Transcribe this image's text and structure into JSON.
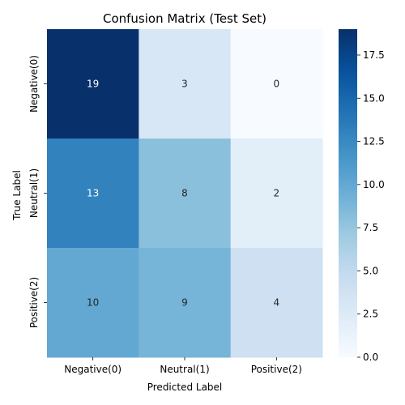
{
  "chart_data": {
    "type": "heatmap",
    "title": "Confusion Matrix (Test Set)",
    "xlabel": "Predicted Label",
    "ylabel": "True Label",
    "x_categories": [
      "Negative(0)",
      "Neutral(1)",
      "Positive(2)"
    ],
    "y_categories": [
      "Negative(0)",
      "Neutral(1)",
      "Positive(2)"
    ],
    "values": [
      [
        19,
        3,
        0
      ],
      [
        13,
        8,
        2
      ],
      [
        10,
        9,
        4
      ]
    ],
    "colorbar": {
      "min": 0,
      "max": 19,
      "ticks": [
        0.0,
        2.5,
        5.0,
        7.5,
        10.0,
        12.5,
        15.0,
        17.5
      ],
      "tick_labels": [
        "0.0",
        "2.5",
        "5.0",
        "7.5",
        "10.0",
        "12.5",
        "15.0",
        "17.5"
      ]
    },
    "colormap": "Blues",
    "colormap_stops": [
      "#f7fbff",
      "#deebf7",
      "#c6dbef",
      "#9ecae1",
      "#6baed6",
      "#4292c6",
      "#2171b5",
      "#08519c",
      "#08306b"
    ]
  }
}
